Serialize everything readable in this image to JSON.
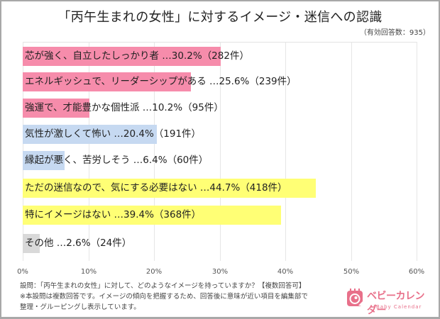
{
  "title": "「丙午生まれの女性」に対するイメージ・迷信への認識",
  "subtitle": "（有効回答数：935）",
  "axis": {
    "ticks": [
      "0%",
      "10%",
      "20%",
      "30%",
      "40%",
      "50%",
      "60%"
    ]
  },
  "colors": {
    "pink": "#f68cab",
    "blue": "#c6d9f1",
    "yellow": "#ffff75",
    "gray": "#d9d9d9",
    "brand": "#e8708a"
  },
  "bars": [
    {
      "label": "芯が強く、自立したしっかり者 …30.2%（282件）",
      "value": 30.2,
      "count": 282,
      "color": "#f68cab"
    },
    {
      "label": "エネルギッシュで、リーダーシップがある …25.6%（239件）",
      "value": 25.6,
      "count": 239,
      "color": "#f68cab"
    },
    {
      "label": "強運で、才能豊かな個性派 …10.2%（95件）",
      "value": 10.2,
      "count": 95,
      "color": "#f68cab"
    },
    {
      "label": "気性が激しくて怖い …20.4%（191件）",
      "value": 20.4,
      "count": 191,
      "color": "#c6d9f1"
    },
    {
      "label": "縁起が悪く、苦労しそう …6.4%（60件）",
      "value": 6.4,
      "count": 60,
      "color": "#c6d9f1"
    },
    {
      "label": "ただの迷信なので、気にする必要はない …44.7%（418件）",
      "value": 44.7,
      "count": 418,
      "color": "#ffff75"
    },
    {
      "label": "特にイメージはない …39.4%（368件）",
      "value": 39.4,
      "count": 368,
      "color": "#ffff75"
    },
    {
      "label": "その他 …2.6%（24件）",
      "value": 2.6,
      "count": 24,
      "color": "#d9d9d9"
    }
  ],
  "notes": [
    "設問：「丙午生まれの女性」に対して、どのようなイメージを持っていますか？【複数回答可】",
    "※本設問は複数回答です。イメージの傾向を把握するため、回答後に意味が近い項目を編集部で",
    "整理・グルーピングし表示しています。"
  ],
  "logo": {
    "text": "ベビーカレンダー",
    "sub": "Baby Calendar"
  },
  "chart_data": {
    "type": "bar",
    "orientation": "horizontal",
    "title": "「丙午生まれの女性」に対するイメージ・迷信への認識",
    "subtitle": "（有効回答数：935）",
    "categories": [
      "芯が強く、自立したしっかり者",
      "エネルギッシュで、リーダーシップがある",
      "強運で、才能豊かな個性派",
      "気性が激しくて怖い",
      "縁起が悪く、苦労しそう",
      "ただの迷信なので、気にする必要はない",
      "特にイメージはない",
      "その他"
    ],
    "values": [
      30.2,
      25.6,
      10.2,
      20.4,
      6.4,
      44.7,
      39.4,
      2.6
    ],
    "counts": [
      282,
      239,
      95,
      191,
      60,
      418,
      368,
      24
    ],
    "xlabel": "",
    "ylabel": "",
    "xlim": [
      0,
      60
    ],
    "xticks": [
      "0%",
      "10%",
      "20%",
      "30%",
      "40%",
      "50%",
      "60%"
    ],
    "grid": true,
    "legend": null,
    "unit": "%",
    "total_responses": 935
  }
}
